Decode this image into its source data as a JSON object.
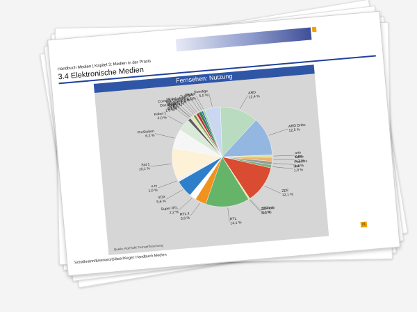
{
  "header": {
    "breadcrumb": "Handbuch Medien | Kapitel 3: Medien in der Praxis",
    "section_title": "3.4  Elektronische Medien"
  },
  "chart_data": {
    "type": "pie",
    "title": "Fernsehen: Nutzung",
    "source": "Quelle: AGF/GfK Fernsehforschung",
    "slices": [
      {
        "name": "ARD",
        "value_label": "12,4 %",
        "value": 12.4,
        "color": "#b9dcc1"
      },
      {
        "name": "ARD Dritte",
        "value_label": "12,5 %",
        "value": 12.5,
        "color": "#93b7e0"
      },
      {
        "name": "arte",
        "value_label": "0,8%",
        "value": 0.8,
        "color": "#e0e0a0"
      },
      {
        "name": "KiKa",
        "value_label": "1,3 %",
        "value": 1.3,
        "color": "#f0b36a"
      },
      {
        "name": "Phoenix",
        "value_label": "1,1 %",
        "value": 1.1,
        "color": "#9a9a9a"
      },
      {
        "name": "3sat",
        "value_label": "1,0 %",
        "value": 1.0,
        "color": "#7fb07f"
      },
      {
        "name": "ZDF",
        "value_label": "12,1 %",
        "value": 12.1,
        "color": "#d94c32"
      },
      {
        "name": "ZDFinfo",
        "value_label": "0,1 %",
        "value": 0.1,
        "color": "#f3d6a5"
      },
      {
        "name": "ZDFneo",
        "value_label": "0,4 %",
        "value": 0.4,
        "color": "#e8e07a"
      },
      {
        "name": "RTL",
        "value_label": "14,1 %",
        "value": 14.1,
        "color": "#66b36a"
      },
      {
        "name": "RTL II",
        "value_label": "3,6 %",
        "value": 3.6,
        "color": "#f0931e"
      },
      {
        "name": "Super RTL",
        "value_label": "2,2 %",
        "value": 2.2,
        "color": "#ffffff"
      },
      {
        "name": "VOX",
        "value_label": "5,6 %",
        "value": 5.6,
        "color": "#2f7ec9"
      },
      {
        "name": "n-tv",
        "value_label": "1,0 %",
        "value": 1.0,
        "color": "#eeeeee"
      },
      {
        "name": "Sat.1",
        "value_label": "10,1 %",
        "value": 10.1,
        "color": "#fdf1d8"
      },
      {
        "name": "ProSieben",
        "value_label": "6,2 %",
        "value": 6.2,
        "color": "#f6f6f6"
      },
      {
        "name": "Kabel 1",
        "value_label": "4,0 %",
        "value": 4.0,
        "color": "#d9ead9"
      },
      {
        "name": "N24",
        "value_label": "1,0 %",
        "value": 1.0,
        "color": "#606060"
      },
      {
        "name": "Anixe",
        "value_label": "0,1 %",
        "value": 0.1,
        "color": "#bbbbbb"
      },
      {
        "name": "Das Vierte",
        "value_label": "0,2 %",
        "value": 0.2,
        "color": "#9dc3e6"
      },
      {
        "name": "Sport 1",
        "value_label": "0,9 %",
        "value": 0.9,
        "color": "#eae4a0"
      },
      {
        "name": "Eurosport",
        "value_label": "0,7 %",
        "value": 0.7,
        "color": "#5f8f5f"
      },
      {
        "name": "Comedy Central",
        "value_label": "0,4 %",
        "value": 0.4,
        "color": "#f5c9a0"
      },
      {
        "name": "Nickelodeon",
        "value_label": "0,8 %",
        "value": 0.8,
        "color": "#c4262e"
      },
      {
        "name": "Tele 5",
        "value_label": "1,0 %",
        "value": 1.0,
        "color": "#2e8b57"
      },
      {
        "name": "VIVA",
        "value_label": "0,5 %",
        "value": 0.5,
        "color": "#3a5fa8"
      },
      {
        "name": "DMAX",
        "value_label": "0,7 %",
        "value": 0.7,
        "color": "#a8d8a8"
      },
      {
        "name": "Sonstige",
        "value_label": "5,0 %",
        "value": 5.0,
        "color": "#c9d7f0"
      }
    ]
  },
  "page_number": "21",
  "footer": "Schallmann/Eisenaro/Gläser/Kegel: Handbuch Medien"
}
